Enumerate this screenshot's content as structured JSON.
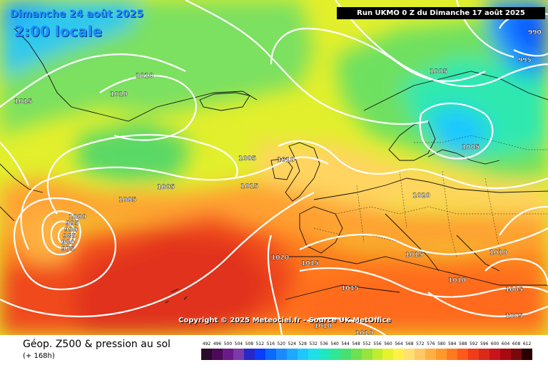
{
  "header": {
    "valid_date": "Dimanche 24 août 2025",
    "local_time": "2:00 locale",
    "run_info": "Run UKMO 0 Z du Dimanche 17 août 2025"
  },
  "footer": {
    "copyright": "Copyright © 2025 Meteociel.fr - Source UK MetOffice",
    "parameter": "Géop. Z500 & pression au sol",
    "forecast_hour": "(+ 168h)"
  },
  "legend": {
    "values": [
      "492",
      "496",
      "500",
      "504",
      "508",
      "512",
      "516",
      "520",
      "524",
      "528",
      "532",
      "536",
      "540",
      "544",
      "548",
      "552",
      "556",
      "560",
      "564",
      "568",
      "572",
      "576",
      "580",
      "584",
      "588",
      "592",
      "596",
      "600",
      "604",
      "608",
      "612"
    ],
    "colors": [
      "#2a0a2a",
      "#4b0a5a",
      "#6a1a8a",
      "#7a3aaa",
      "#2828c8",
      "#0a3cff",
      "#0a6aff",
      "#1c8aff",
      "#1ea8ff",
      "#1ec8ff",
      "#1ee0e8",
      "#1ee8c0",
      "#2ee89a",
      "#4ae070",
      "#6ee050",
      "#96e43c",
      "#c0ee2e",
      "#e6f22e",
      "#fff04a",
      "#ffe070",
      "#ffc864",
      "#ffb040",
      "#ff9a2a",
      "#ff7a1e",
      "#ff5a1a",
      "#f03c1a",
      "#dc2a1a",
      "#c8141a",
      "#a80a12",
      "#7a0a0a",
      "#2a0000"
    ]
  },
  "isobars": {
    "labels": [
      "1010",
      "1010",
      "1015",
      "1005",
      "1010",
      "1005",
      "1005",
      "1015",
      "1005",
      "1000",
      "995",
      "990",
      "985",
      "980",
      "975",
      "1020",
      "1015",
      "1015",
      "1020",
      "1015",
      "1010",
      "1010",
      "1005",
      "1010",
      "1010",
      "1005",
      "1005",
      "995",
      "990",
      "1005"
    ]
  }
}
